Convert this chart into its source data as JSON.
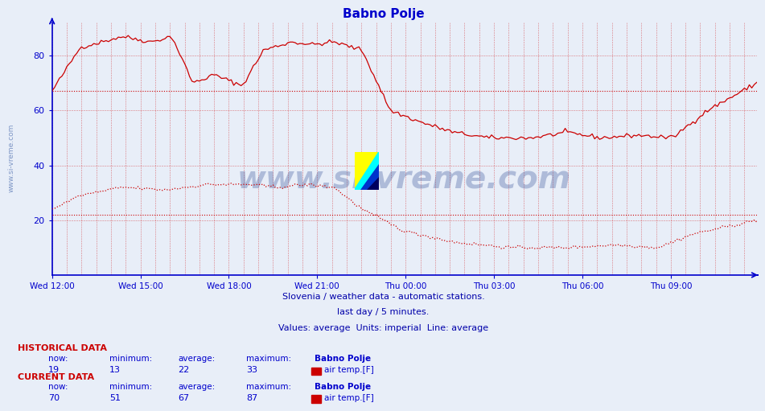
{
  "title": "Babno Polje",
  "title_color": "#0000cc",
  "title_fontsize": 11,
  "bg_color": "#e8eef8",
  "axis_color": "#0000cc",
  "line_color": "#cc0000",
  "yticks": [
    20,
    40,
    60,
    80
  ],
  "ylim": [
    0,
    92
  ],
  "xtick_labels": [
    "Wed 12:00",
    "Wed 15:00",
    "Wed 18:00",
    "Wed 21:00",
    "Thu 00:00",
    "Thu 03:00",
    "Thu 06:00",
    "Thu 09:00"
  ],
  "n_points": 288,
  "avg_line1": 67,
  "avg_line2": 22,
  "subtitle1": "Slovenia / weather data - automatic stations.",
  "subtitle2": "last day / 5 minutes.",
  "subtitle3": "Values: average  Units: imperial  Line: average",
  "subtitle_color": "#0000aa",
  "watermark": "www.si-vreme.com",
  "watermark_color": "#1a3a8a",
  "watermark_alpha": 0.28,
  "hist_label": "HISTORICAL DATA",
  "curr_label": "CURRENT DATA",
  "hist_now": 19,
  "hist_min": 13,
  "hist_avg": 22,
  "hist_max": 33,
  "curr_now": 70,
  "curr_min": 51,
  "curr_avg": 67,
  "curr_max": 87,
  "data_label": "air temp.[F]",
  "station_label": "Babno Polje",
  "label_color": "#0000cc",
  "data_color_box": "#cc0000",
  "sidewatermark": "www.si-vreme.com",
  "sidewatermark_color": "#4466aa",
  "sidewatermark_alpha": 0.65
}
